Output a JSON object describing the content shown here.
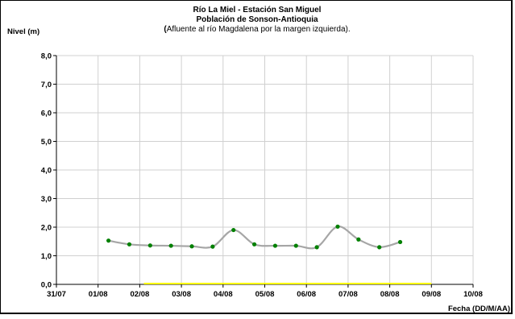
{
  "chart_data": {
    "type": "line",
    "title_lines": [
      "Río La Miel  - Estación San Miguel",
      "Población de Sonson-Antioquia"
    ],
    "subtitle_bold_char": "(",
    "subtitle_rest": "Afluente al río Magdalena por la margen izquierda).",
    "ylabel": "Nivel (m)",
    "xlabel": "Fecha (DD/M/AA)",
    "ylim": [
      0,
      8
    ],
    "yticks": [
      "0,0",
      "1,0",
      "2,0",
      "3,0",
      "4,0",
      "5,0",
      "6,0",
      "7,0",
      "8,0"
    ],
    "xticks": [
      "31/07",
      "01/08",
      "02/08",
      "03/08",
      "04/08",
      "05/08",
      "06/08",
      "07/08",
      "08/08",
      "09/08",
      "10/08"
    ],
    "xlim_days": [
      0,
      10
    ],
    "grid": true,
    "series": [
      {
        "color": "#a6a6a6",
        "marker_color": "#008000",
        "x_days": [
          1.25,
          1.75,
          2.25,
          2.75,
          3.25,
          3.75,
          4.25,
          4.75,
          5.25,
          5.75,
          6.25,
          6.75,
          7.25,
          7.75,
          8.25
        ],
        "values": [
          1.53,
          1.4,
          1.36,
          1.35,
          1.33,
          1.32,
          1.9,
          1.4,
          1.35,
          1.35,
          1.3,
          2.02,
          1.57,
          1.3,
          1.48
        ]
      }
    ],
    "threshold_line": {
      "color": "#ffff00",
      "value": 0,
      "x_from_days": 2.1,
      "x_to_days": 9.0
    }
  }
}
